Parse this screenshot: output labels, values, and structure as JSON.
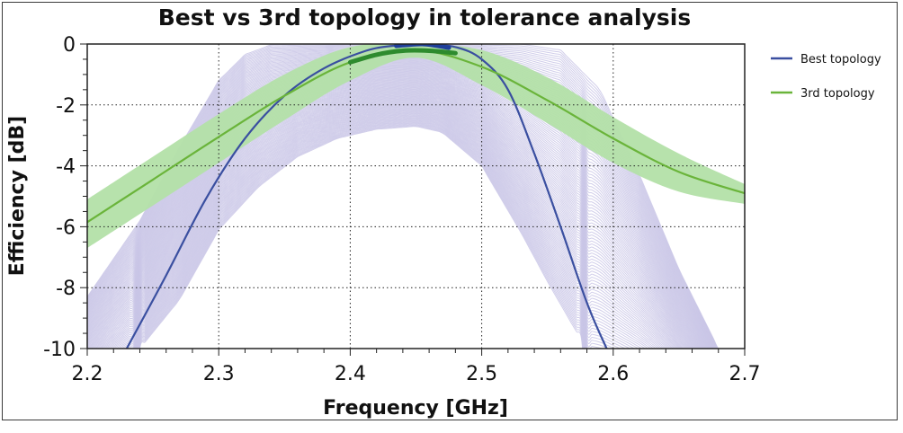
{
  "chart_data": {
    "type": "line",
    "title": "Best vs 3rd topology in tolerance analysis",
    "xlabel": "Frequency [GHz]",
    "ylabel": "Efficiency [dB]",
    "xlim": [
      2.2,
      2.7
    ],
    "ylim": [
      -10,
      0
    ],
    "xticks": [
      2.2,
      2.3,
      2.4,
      2.5,
      2.6,
      2.7
    ],
    "xtick_labels": [
      "2.2",
      "2.3",
      "2.4",
      "2.5",
      "2.6",
      "2.7"
    ],
    "yticks": [
      0,
      -2,
      -4,
      -6,
      -8,
      -10
    ],
    "ytick_labels": [
      "0",
      "-2",
      "-4",
      "-6",
      "-8",
      "-10"
    ],
    "grid": true,
    "legend_position": "right",
    "colors": {
      "best": "#3a4fa0",
      "third": "#6ab43a",
      "best_band": "#c9c6e6",
      "third_band": "#b3e0a8",
      "highlight_best": "#1f3f9a",
      "highlight_third": "#2e8b2e"
    },
    "series": [
      {
        "name": "Best topology",
        "color": "#3a4fa0",
        "x": [
          2.23,
          2.26,
          2.29,
          2.32,
          2.35,
          2.38,
          2.41,
          2.43,
          2.455,
          2.48,
          2.5,
          2.52,
          2.54,
          2.56,
          2.58,
          2.595
        ],
        "y": [
          -10,
          -7.6,
          -5.1,
          -3.1,
          -1.7,
          -0.8,
          -0.25,
          -0.07,
          0,
          -0.1,
          -0.5,
          -1.5,
          -3.6,
          -6.0,
          -8.5,
          -10
        ]
      },
      {
        "name": "3rd topology",
        "color": "#6ab43a",
        "x": [
          2.2,
          2.25,
          2.3,
          2.35,
          2.4,
          2.45,
          2.5,
          2.55,
          2.6,
          2.65,
          2.7
        ],
        "y": [
          -5.85,
          -4.45,
          -3.05,
          -1.7,
          -0.6,
          -0.2,
          -0.75,
          -1.85,
          -3.1,
          -4.2,
          -4.9
        ]
      }
    ],
    "tolerance_bands": {
      "best_topology_spread": {
        "upper": {
          "x": [
            2.2,
            2.24,
            2.27,
            2.3,
            2.32,
            2.34,
            2.37,
            2.4,
            2.45,
            2.5,
            2.53,
            2.56,
            2.59,
            2.62,
            2.65,
            2.68
          ],
          "y": [
            -8.3,
            -5.8,
            -3.4,
            -1.2,
            -0.35,
            -0.02,
            0,
            0,
            0,
            0,
            0,
            -0.2,
            -1.5,
            -4.3,
            -7.4,
            -10
          ]
        },
        "lower": {
          "x": [
            2.24,
            2.27,
            2.3,
            2.33,
            2.36,
            2.39,
            2.42,
            2.45,
            2.47,
            2.5,
            2.53,
            2.55,
            2.57,
            2.58
          ],
          "y": [
            -10,
            -8.4,
            -6.1,
            -4.7,
            -3.7,
            -3.1,
            -2.8,
            -2.7,
            -2.9,
            -4.0,
            -6.2,
            -7.8,
            -9.3,
            -10
          ]
        }
      },
      "third_topology_spread": {
        "x": [
          2.2,
          2.25,
          2.3,
          2.35,
          2.4,
          2.45,
          2.5,
          2.55,
          2.6,
          2.65,
          2.7
        ],
        "upper": [
          -5.1,
          -3.7,
          -2.3,
          -1.0,
          -0.1,
          0,
          -0.2,
          -1.1,
          -2.4,
          -3.6,
          -4.6
        ],
        "lower": [
          -6.7,
          -5.3,
          -3.9,
          -2.5,
          -1.2,
          -0.45,
          -1.35,
          -2.6,
          -3.9,
          -4.85,
          -5.25
        ]
      }
    },
    "highlight_segments": [
      {
        "series": "Best topology",
        "x": [
          2.435,
          2.455,
          2.475
        ],
        "y": [
          -0.06,
          0,
          -0.12
        ]
      },
      {
        "series": "3rd topology",
        "x": [
          2.4,
          2.42,
          2.44,
          2.46,
          2.48
        ],
        "y": [
          -0.6,
          -0.35,
          -0.22,
          -0.22,
          -0.3
        ]
      }
    ]
  }
}
